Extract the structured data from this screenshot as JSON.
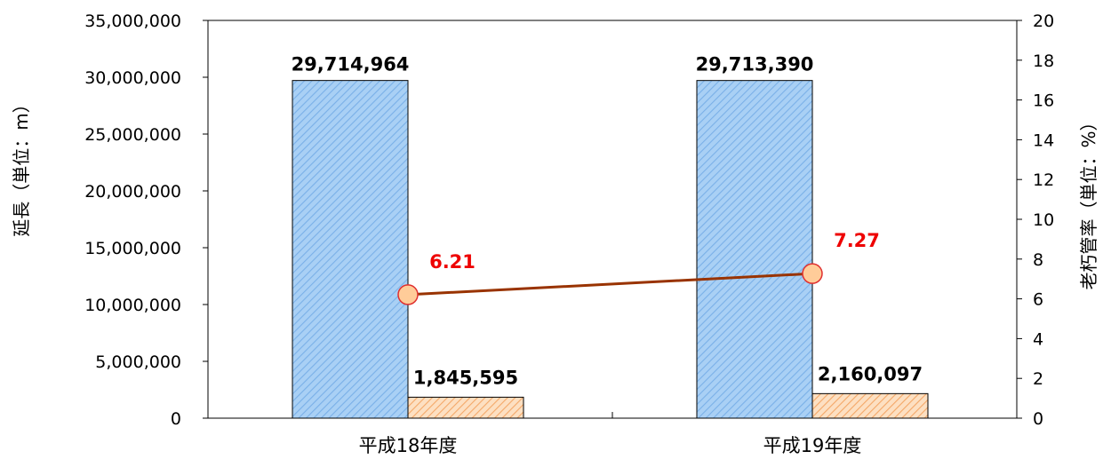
{
  "chart_data": {
    "type": "bar",
    "categories": [
      "平成18年度",
      "平成19年度"
    ],
    "series": [
      {
        "values": [
          29714964,
          29713390
        ],
        "labels": [
          "29,714,964",
          "29,713,390"
        ],
        "axis": "left"
      },
      {
        "values": [
          1845595,
          2160097
        ],
        "labels": [
          "1,845,595",
          "2,160,097"
        ],
        "axis": "left"
      },
      {
        "type": "line",
        "values": [
          6.21,
          7.27
        ],
        "labels": [
          "6.21",
          "7.27"
        ],
        "axis": "right"
      }
    ],
    "ylabel": "延長（単位：m）",
    "y2label": "老朽管率（単位：%）",
    "ylim": [
      0,
      35000000
    ],
    "y2lim": [
      0,
      20
    ],
    "yticks": [
      "0",
      "5,000,000",
      "10,000,000",
      "15,000,000",
      "20,000,000",
      "25,000,000",
      "30,000,000",
      "35,000,000"
    ],
    "y2ticks": [
      "0",
      "2",
      "4",
      "6",
      "8",
      "10",
      "12",
      "14",
      "16",
      "18",
      "20"
    ],
    "grid": false,
    "colors": {
      "bar1_fill": "#a9d0f5",
      "bar1_hatch": "#7ab0e8",
      "bar2_fill": "#fde0c2",
      "bar2_hatch": "#f4a868",
      "line": "#993300",
      "marker_fill": "#ffcc99",
      "marker_stroke": "#e03030",
      "line_label": "#ee0000"
    }
  }
}
